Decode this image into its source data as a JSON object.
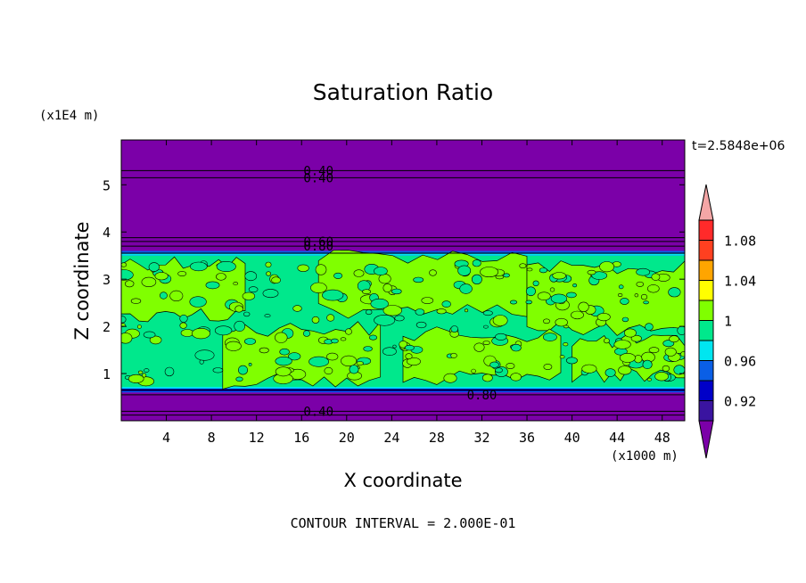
{
  "chart_data": {
    "type": "heatmap",
    "title": "Saturation Ratio",
    "xlabel": "X coordinate",
    "ylabel": "Z coordinate",
    "x_unit": "(x1000 m)",
    "y_unit": "(x1E4 m)",
    "time_label": "t=2.5848e+06",
    "footer": "CONTOUR INTERVAL = 2.000E-01",
    "xlim": [
      0,
      50
    ],
    "ylim": [
      0,
      5.95
    ],
    "x_ticks": [
      4,
      8,
      12,
      16,
      20,
      24,
      28,
      32,
      36,
      40,
      44,
      48
    ],
    "x_tick_labels": [
      "4",
      "8",
      "12",
      "16",
      "20",
      "24",
      "28",
      "32",
      "36",
      "40",
      "44",
      "48"
    ],
    "y_ticks": [
      1,
      2,
      3,
      4,
      5
    ],
    "y_tick_labels": [
      "1",
      "2",
      "3",
      "4",
      "5"
    ],
    "contour_interval": 0.2,
    "colorbar": {
      "levels": [
        0.9,
        0.92,
        0.94,
        0.96,
        0.98,
        1.0,
        1.02,
        1.04,
        1.06,
        1.08,
        1.1
      ],
      "colors": [
        "#7b00a8",
        "#3a14a0",
        "#0000c8",
        "#0a5fe6",
        "#00e6f0",
        "#00e88c",
        "#80ff00",
        "#ffff00",
        "#ffa500",
        "#ff4020",
        "#ff2a2a",
        "#f4a6a6"
      ],
      "tick_labels": [
        "0.92",
        "0.96",
        "1",
        "1.04",
        "1.08"
      ],
      "tick_values": [
        0.92,
        0.96,
        1.0,
        1.04,
        1.08
      ],
      "extend": "both"
    },
    "layers": [
      {
        "z_range": [
          0,
          0.6
        ],
        "value_class": "below 0.92"
      },
      {
        "z_range": [
          0.6,
          0.7
        ],
        "value_class": "0.94-0.98"
      },
      {
        "z_range": [
          0.7,
          3.5
        ],
        "value_class": "0.98-1.02",
        "note": "mixed with 1.00-1.02 patches"
      },
      {
        "z_range": [
          3.5,
          3.6
        ],
        "value_class": "0.94-0.98"
      },
      {
        "z_range": [
          3.6,
          5.95
        ],
        "value_class": "below 0.92"
      }
    ],
    "contour_labels": [
      {
        "text": "0.40",
        "x": 17.5,
        "z": 5.3
      },
      {
        "text": "0.40",
        "x": 17.5,
        "z": 5.15
      },
      {
        "text": "0.60",
        "x": 17.5,
        "z": 3.8
      },
      {
        "text": "0.80",
        "x": 17.5,
        "z": 3.7
      },
      {
        "text": "0.80",
        "x": 32.0,
        "z": 0.55
      },
      {
        "text": "0.40",
        "x": 17.5,
        "z": 0.2
      }
    ],
    "grid": false,
    "legend_position": "right"
  }
}
